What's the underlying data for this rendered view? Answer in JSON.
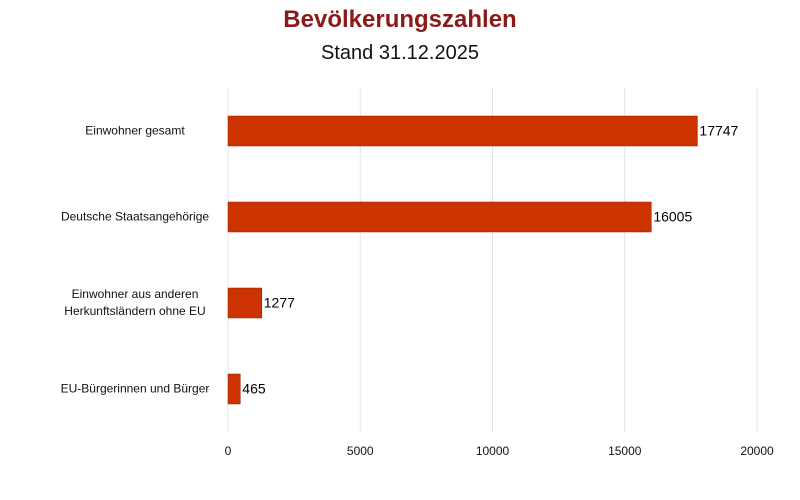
{
  "chart_data": {
    "type": "hbar",
    "title": "Bevölkerungszahlen",
    "subtitle": "Stand 31.12.2025",
    "categories": [
      "Einwohner gesamt",
      "Deutsche Staatsangehörige",
      "Einwohner aus anderen\nHerkunftsländern ohne EU",
      "EU-Bürgerinnen und Bürger"
    ],
    "values": [
      17747,
      16005,
      1277,
      465
    ],
    "color": "#cc3300",
    "xlim": [
      0,
      20000
    ],
    "xticks": [
      0,
      5000,
      10000,
      15000,
      20000
    ],
    "grid": true
  }
}
